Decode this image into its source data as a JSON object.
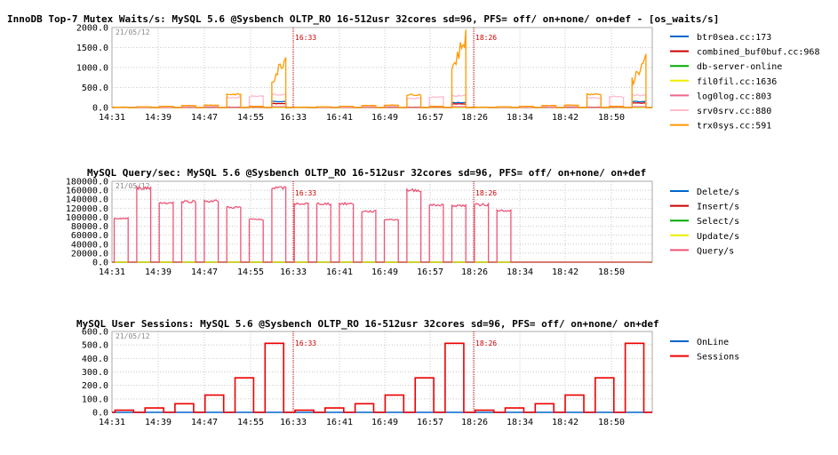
{
  "chart_data": [
    {
      "type": "line",
      "title": "InnoDB Top-7 Mutex Waits/s: MySQL 5.6 @Sysbench OLTP_RO 16-512usr 32cores sd=96, PFS= off/ on+none/ on+def - [os_waits/s]",
      "watermark": "21/05/12",
      "x_ticks": [
        "14:31",
        "14:39",
        "14:47",
        "14:55",
        "16:33",
        "16:41",
        "16:49",
        "16:57",
        "18:26",
        "18:34",
        "18:42",
        "18:50"
      ],
      "markers": [
        "16:33",
        "18:26"
      ],
      "ylim": [
        0,
        2000
      ],
      "y_ticks": [
        "0.0",
        "500.0",
        "1000.0",
        "1500.0",
        "2000.0"
      ],
      "series": [
        {
          "name": "btr0sea.cc:173",
          "color": "#0066cc",
          "profile": [
            5,
            5,
            5,
            5,
            5,
            8,
            10,
            150,
            5,
            5,
            5,
            5,
            5,
            8,
            10,
            120,
            5,
            5,
            5,
            5,
            5,
            8,
            10,
            150
          ]
        },
        {
          "name": "combined_buf0buf.cc:968",
          "color": "#cc0000",
          "profile": [
            5,
            5,
            5,
            5,
            5,
            10,
            15,
            100,
            5,
            5,
            5,
            5,
            5,
            10,
            15,
            90,
            5,
            5,
            5,
            5,
            5,
            10,
            15,
            110
          ]
        },
        {
          "name": "db-server-online",
          "color": "#00aa00",
          "profile": [
            0,
            0,
            0,
            0,
            0,
            0,
            0,
            0,
            0,
            0,
            0,
            0,
            0,
            0,
            0,
            0,
            0,
            0,
            0,
            0,
            0,
            0,
            0,
            0
          ]
        },
        {
          "name": "fil0fil.cc:1636",
          "color": "#eeee00",
          "profile": [
            0,
            0,
            0,
            0,
            0,
            0,
            0,
            0,
            0,
            0,
            0,
            0,
            0,
            0,
            0,
            0,
            0,
            0,
            0,
            0,
            0,
            0,
            0,
            0
          ]
        },
        {
          "name": "log0log.cc:803",
          "color": "#ee6688",
          "profile": [
            3,
            3,
            3,
            3,
            3,
            5,
            8,
            20,
            3,
            3,
            3,
            3,
            3,
            5,
            8,
            20,
            3,
            3,
            3,
            3,
            3,
            5,
            8,
            20
          ]
        },
        {
          "name": "srv0srv.cc:880",
          "color": "#ffbbcc",
          "profile": [
            10,
            15,
            20,
            30,
            40,
            250,
            280,
            320,
            10,
            15,
            20,
            30,
            40,
            230,
            260,
            300,
            10,
            15,
            20,
            30,
            40,
            240,
            270,
            310
          ]
        },
        {
          "name": "trx0sys.cc:591",
          "color": "#ff9900",
          "profile": [
            10,
            20,
            30,
            50,
            60,
            330,
            30,
            1250,
            10,
            20,
            30,
            50,
            60,
            320,
            30,
            1780,
            10,
            20,
            30,
            50,
            60,
            330,
            30,
            1200
          ]
        }
      ]
    },
    {
      "type": "line",
      "title": "MySQL Query/sec: MySQL 5.6 @Sysbench OLTP_RO 16-512usr 32cores sd=96, PFS= off/ on+none/ on+def",
      "watermark": "21/05/12",
      "x_ticks": [
        "14:31",
        "14:39",
        "14:47",
        "14:55",
        "16:33",
        "16:41",
        "16:49",
        "16:57",
        "18:26",
        "18:34",
        "18:42",
        "18:50"
      ],
      "markers": [
        "16:33",
        "18:26"
      ],
      "ylim": [
        0,
        180000
      ],
      "y_ticks": [
        "0.0",
        "20000.0",
        "40000.0",
        "60000.0",
        "80000.0",
        "100000.0",
        "120000.0",
        "140000.0",
        "160000.0",
        "180000.0"
      ],
      "series": [
        {
          "name": "Delete/s",
          "color": "#0066cc",
          "profile": [
            0,
            0,
            0,
            0,
            0,
            0,
            0,
            0,
            0,
            0,
            0,
            0,
            0,
            0,
            0,
            0,
            0,
            0,
            0,
            0,
            0,
            0,
            0,
            0
          ]
        },
        {
          "name": "Insert/s",
          "color": "#cc0000",
          "profile": [
            0,
            0,
            0,
            0,
            0,
            0,
            0,
            0,
            0,
            0,
            0,
            0,
            0,
            0,
            0,
            0,
            0,
            0,
            0,
            0,
            0,
            0,
            0,
            0
          ]
        },
        {
          "name": "Select/s",
          "color": "#00aa00",
          "profile": [
            0,
            0,
            0,
            0,
            0,
            0,
            0,
            0,
            0,
            0,
            0,
            0,
            0,
            0,
            0,
            0,
            0,
            0,
            0,
            0,
            0,
            0,
            0,
            0
          ]
        },
        {
          "name": "Update/s",
          "color": "#eeee00",
          "profile": [
            0,
            0,
            0,
            0,
            0,
            0,
            0,
            0,
            0,
            0,
            0,
            0,
            0,
            0,
            0,
            0,
            0,
            0,
            0,
            0,
            0,
            0,
            0,
            0
          ]
        },
        {
          "name": "Query/s",
          "color": "#ee5577",
          "profile": [
            97000,
            165000,
            132000,
            135000,
            136000,
            122000,
            95000,
            165000,
            130000,
            130000,
            130000,
            113000,
            95000,
            160000,
            127000,
            126000,
            128000,
            115000
          ]
        }
      ]
    },
    {
      "type": "line",
      "title": "MySQL User Sessions: MySQL 5.6 @Sysbench OLTP_RO 16-512usr 32cores sd=96, PFS= off/ on+none/ on+def",
      "watermark": "21/05/12",
      "x_ticks": [
        "14:31",
        "14:39",
        "14:47",
        "14:55",
        "16:33",
        "16:41",
        "16:49",
        "16:57",
        "18:26",
        "18:34",
        "18:42",
        "18:50"
      ],
      "markers": [
        "16:33",
        "18:26"
      ],
      "ylim": [
        0,
        600
      ],
      "y_ticks": [
        "0.0",
        "100.0",
        "200.0",
        "300.0",
        "400.0",
        "500.0",
        "600.0"
      ],
      "series": [
        {
          "name": "OnLine",
          "color": "#0066cc",
          "profile": [
            0,
            0,
            0,
            0,
            0,
            0,
            0,
            0,
            0,
            0,
            0,
            0,
            0,
            0,
            0,
            0,
            0,
            0
          ]
        },
        {
          "name": "Sessions",
          "color": "#ee0000",
          "profile": [
            16,
            32,
            64,
            128,
            256,
            512,
            16,
            32,
            64,
            128,
            256,
            512,
            16,
            32,
            64,
            128,
            256,
            512
          ]
        }
      ]
    }
  ]
}
